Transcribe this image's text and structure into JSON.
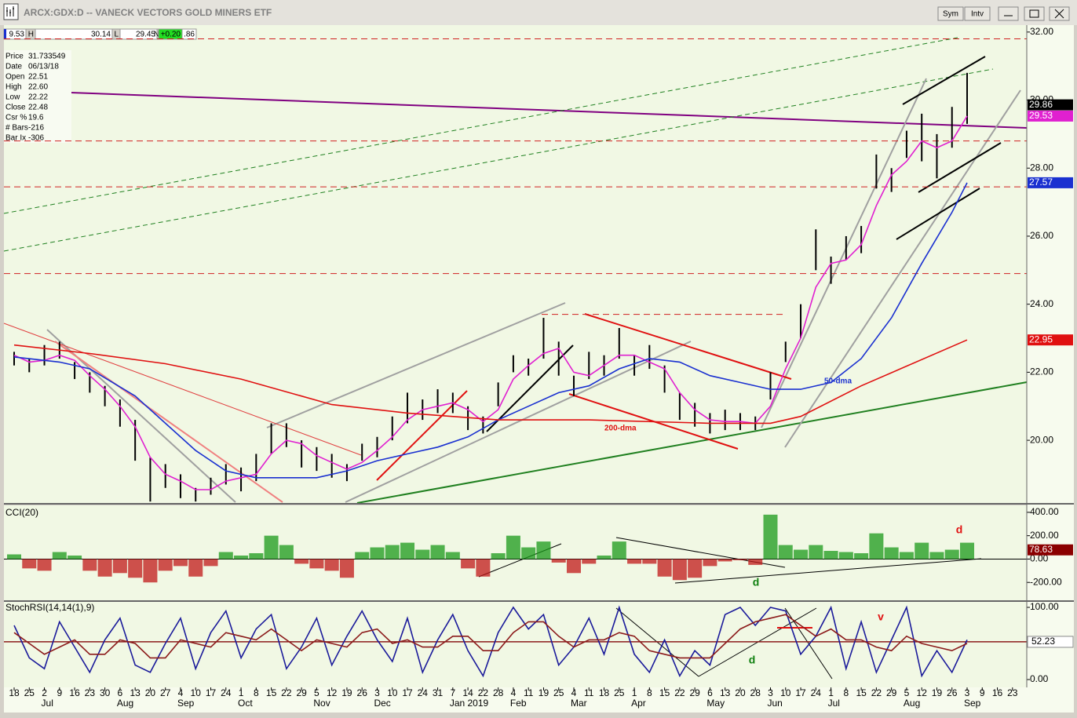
{
  "window": {
    "title": "ARCX:GDX:D -- VANECK VECTORS GOLD MINERS ETF",
    "buttons": [
      "Sym",
      "Intv"
    ]
  },
  "quote": [
    "9.53",
    "H",
    "30.14",
    "L",
    "29.45",
    "N",
    "+0.20",
    ".86"
  ],
  "info": [
    {
      "label": "Price",
      "value": "31.733549"
    },
    {
      "label": "Date",
      "value": "06/13/18"
    },
    {
      "label": "Open",
      "value": "22.51"
    },
    {
      "label": "High",
      "value": "22.60"
    },
    {
      "label": "Low",
      "value": "22.22"
    },
    {
      "label": "Close",
      "value": "22.48"
    },
    {
      "label": "Csr %",
      "value": "19.6"
    },
    {
      "label": "# Bars",
      "value": "-216"
    },
    {
      "label": "Bar Ix",
      "value": "-306"
    }
  ],
  "chart_data": [
    {
      "type": "ohlc",
      "color": "#000000",
      "categories": [
        "18",
        "25",
        "2",
        "9",
        "16",
        "23",
        "30",
        "6",
        "13",
        "20",
        "27",
        "4",
        "10",
        "17",
        "24",
        "1",
        "8",
        "15",
        "22",
        "29",
        "5",
        "12",
        "19",
        "26",
        "3",
        "10",
        "17",
        "24",
        "31",
        "7",
        "14",
        "22",
        "28",
        "4",
        "11",
        "19",
        "25",
        "4",
        "11",
        "18",
        "25",
        "1",
        "8",
        "15",
        "22",
        "29",
        "6",
        "13",
        "20",
        "28",
        "3",
        "10",
        "17",
        "24",
        "1",
        "8",
        "15",
        "22",
        "29",
        "5",
        "12",
        "19",
        "26",
        "3",
        "9",
        "16",
        "23"
      ],
      "months": [
        "Jul",
        "Aug",
        "Sep",
        "Oct",
        "Nov",
        "Dec",
        "Jan 2019",
        "Feb",
        "Mar",
        "Apr",
        "May",
        "Jun",
        "Jul",
        "Aug",
        "Sep"
      ],
      "high": [
        22.6,
        22.4,
        22.8,
        22.9,
        22.3,
        22.0,
        21.6,
        21.2,
        20.6,
        19.5,
        19.3,
        19.0,
        18.6,
        18.9,
        19.3,
        19.2,
        19.6,
        20.5,
        20.5,
        20.0,
        19.8,
        19.6,
        19.3,
        19.9,
        20.1,
        20.7,
        21.4,
        21.2,
        21.5,
        21.4,
        21.0,
        20.7,
        21.7,
        22.5,
        22.4,
        23.6,
        22.9,
        21.9,
        22.6,
        22.5,
        23.3,
        22.5,
        22.8,
        22.2,
        21.4,
        21.1,
        20.8,
        20.9,
        20.8,
        20.7,
        22.0,
        22.9,
        24.0,
        26.2,
        25.4,
        26.0,
        26.3,
        28.4,
        28.0,
        29.1,
        29.6,
        29.0,
        29.8,
        30.8,
        null,
        null,
        null
      ],
      "low": [
        22.2,
        22.0,
        22.2,
        22.4,
        21.8,
        21.4,
        21.0,
        20.4,
        19.4,
        18.2,
        18.6,
        18.3,
        18.2,
        18.4,
        18.7,
        18.5,
        18.8,
        19.6,
        19.8,
        19.2,
        19.1,
        18.9,
        18.8,
        19.4,
        19.5,
        20.0,
        20.5,
        20.6,
        20.8,
        20.8,
        20.3,
        20.2,
        21.0,
        22.0,
        21.9,
        22.4,
        21.9,
        21.3,
        21.8,
        21.9,
        22.4,
        21.9,
        22.1,
        21.4,
        20.6,
        20.4,
        20.2,
        20.3,
        20.3,
        20.3,
        21.2,
        22.3,
        23.0,
        25.0,
        24.6,
        25.3,
        25.5,
        27.4,
        27.3,
        28.3,
        28.2,
        27.7,
        28.6,
        29.3,
        null,
        null,
        null
      ],
      "series": [
        {
          "name": "pink",
          "color": "#e020d0",
          "x": [
            0,
            1,
            2,
            3,
            4,
            5,
            6,
            7,
            8,
            9,
            10,
            11,
            12,
            13,
            14,
            15,
            16,
            17,
            18,
            19,
            20,
            21,
            22,
            23,
            24,
            25,
            26,
            27,
            28,
            29,
            30,
            31,
            32,
            33,
            34,
            35,
            36,
            37,
            38,
            39,
            40,
            41,
            42,
            43,
            44,
            45,
            46,
            47,
            48,
            49,
            50,
            51,
            52,
            53,
            54,
            55,
            56,
            57,
            58,
            59,
            60,
            61,
            62,
            63
          ],
          "values": [
            22.5,
            22.3,
            22.35,
            22.5,
            22.35,
            21.9,
            21.5,
            21.0,
            20.4,
            19.5,
            19.0,
            18.8,
            18.55,
            18.55,
            18.8,
            18.9,
            19.0,
            19.6,
            20.0,
            19.9,
            19.55,
            19.35,
            19.15,
            19.35,
            19.7,
            20.1,
            20.6,
            20.9,
            21.0,
            21.1,
            20.9,
            20.55,
            20.9,
            21.8,
            22.2,
            22.55,
            22.7,
            22.0,
            21.9,
            22.2,
            22.5,
            22.5,
            22.3,
            22.1,
            21.4,
            20.9,
            20.6,
            20.55,
            20.55,
            20.5,
            21.0,
            22.1,
            23.0,
            24.5,
            25.2,
            25.3,
            25.75,
            26.9,
            27.8,
            28.2,
            28.8,
            28.6,
            28.8,
            29.53
          ]
        },
        {
          "name": "50-dma",
          "color": "#1a30d0",
          "x": [
            0,
            3,
            5,
            8,
            10,
            12,
            14,
            16,
            18,
            20,
            22,
            24,
            26,
            28,
            30,
            32,
            34,
            36,
            38,
            40,
            42,
            44,
            46,
            48,
            50,
            52,
            54,
            56,
            58,
            60,
            62,
            63
          ],
          "values": [
            22.45,
            22.3,
            22.1,
            21.3,
            20.5,
            19.7,
            19.1,
            18.9,
            18.9,
            18.9,
            19.1,
            19.4,
            19.6,
            19.8,
            20.1,
            20.6,
            21.0,
            21.4,
            21.6,
            22.1,
            22.4,
            22.3,
            21.9,
            21.7,
            21.5,
            21.5,
            21.7,
            22.4,
            23.6,
            25.2,
            26.7,
            27.57
          ]
        },
        {
          "name": "200-dma",
          "color": "#e01010",
          "x": [
            0,
            5,
            10,
            15,
            21,
            26,
            32,
            38,
            46,
            50,
            52,
            56,
            63
          ],
          "values": [
            22.8,
            22.55,
            22.25,
            21.8,
            21.05,
            20.8,
            20.6,
            20.6,
            20.5,
            20.5,
            20.7,
            21.6,
            22.95
          ]
        }
      ],
      "levels": [
        31.8,
        28.8,
        27.45,
        24.9,
        23.7
      ],
      "last_values": [
        {
          "value": 29.86,
          "color": "#000000"
        },
        {
          "value": 29.53,
          "color": "#e020d0"
        },
        {
          "value": 27.57,
          "color": "#1a30d0"
        },
        {
          "value": 22.95,
          "color": "#e01010"
        }
      ],
      "ylim": [
        18.18,
        32.25
      ],
      "yticks": [
        {
          "value": 20,
          "label": "20.00"
        },
        {
          "value": 22,
          "label": "22.00"
        },
        {
          "value": 24,
          "label": "24.00"
        },
        {
          "value": 26,
          "label": "26.00"
        },
        {
          "value": 28,
          "label": "28.00"
        },
        {
          "value": 30,
          "label": "30.00"
        },
        {
          "value": 32,
          "label": "32.00"
        }
      ]
    },
    {
      "type": "bar",
      "title": "CCI(20)",
      "colors": {
        "up": "#1a9a1a",
        "down": "#c01818"
      },
      "values": [
        40,
        -80,
        -100,
        60,
        30,
        -100,
        -150,
        -120,
        -160,
        -200,
        -100,
        -60,
        -150,
        -60,
        60,
        30,
        50,
        200,
        120,
        -40,
        -80,
        -100,
        -160,
        60,
        100,
        120,
        140,
        80,
        120,
        60,
        -80,
        -150,
        50,
        200,
        100,
        150,
        -30,
        -120,
        -40,
        30,
        150,
        -40,
        -40,
        -150,
        -180,
        -160,
        -60,
        -20,
        -10,
        -50,
        380,
        120,
        80,
        120,
        70,
        60,
        50,
        220,
        100,
        60,
        140,
        60,
        80,
        140,
        null,
        null,
        null
      ],
      "last": {
        "value": 78.63,
        "color": "#8b0000"
      },
      "annotations": [
        {
          "text": "d",
          "color": "#e01010"
        },
        {
          "text": "d",
          "color": "#108010"
        }
      ],
      "ylim": [
        -353,
        453
      ],
      "yticks": [
        {
          "value": 400,
          "label": "400.00"
        },
        {
          "value": 200,
          "label": "200.00"
        },
        {
          "value": 0,
          "label": "0.00"
        },
        {
          "value": -200,
          "label": "-200.00"
        }
      ]
    },
    {
      "type": "line",
      "title": "StochRSI(14,14(1),9)",
      "series": [
        {
          "name": "StochRSI",
          "color": "#1a1a9a",
          "values": [
            75,
            30,
            15,
            80,
            45,
            10,
            55,
            85,
            20,
            10,
            50,
            85,
            15,
            65,
            95,
            30,
            70,
            90,
            15,
            45,
            85,
            20,
            60,
            95,
            55,
            25,
            85,
            10,
            55,
            90,
            40,
            5,
            65,
            100,
            70,
            90,
            20,
            45,
            85,
            35,
            100,
            35,
            10,
            55,
            5,
            40,
            20,
            90,
            100,
            75,
            100,
            95,
            35,
            60,
            100,
            15,
            80,
            10,
            55,
            100,
            5,
            40,
            10,
            55,
            null,
            null,
            null
          ]
        },
        {
          "name": "Signal",
          "color": "#8b1a1a",
          "values": [
            65,
            50,
            35,
            45,
            55,
            35,
            35,
            55,
            50,
            30,
            30,
            55,
            50,
            45,
            65,
            60,
            55,
            70,
            55,
            40,
            55,
            50,
            45,
            65,
            70,
            50,
            55,
            45,
            45,
            60,
            60,
            40,
            40,
            65,
            80,
            80,
            60,
            45,
            55,
            55,
            65,
            60,
            40,
            35,
            30,
            30,
            30,
            50,
            70,
            80,
            85,
            90,
            75,
            60,
            70,
            55,
            55,
            45,
            40,
            60,
            50,
            45,
            40,
            50,
            null,
            null,
            null
          ]
        }
      ],
      "reference": {
        "value": 52.23,
        "color": "#8b1a1a"
      },
      "annotations": [
        {
          "text": "v",
          "color": "#e01010"
        },
        {
          "text": "d",
          "color": "#108010"
        }
      ],
      "ylim": [
        -9.8,
        107.6
      ],
      "yticks": [
        {
          "value": 100,
          "label": "100.00"
        },
        {
          "value": 0,
          "label": "0.00"
        }
      ]
    }
  ]
}
